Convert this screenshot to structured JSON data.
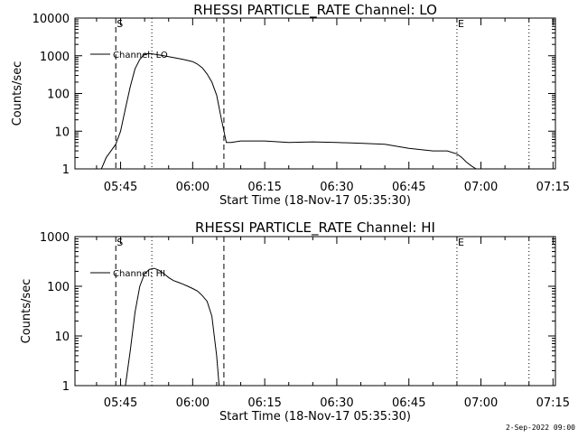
{
  "footer": {
    "date_label": "2-Sep-2022 09:00"
  },
  "chart_data": [
    {
      "type": "line",
      "title": "RHESSI PARTICLE_RATE Channel: LO",
      "xlabel": "Start Time (18-Nov-17 05:35:30)",
      "ylabel": "Counts/sec",
      "y_scale": "log",
      "ylim": [
        1,
        10000
      ],
      "xlim": [
        "05:35:30",
        "07:15:30"
      ],
      "x_ticks": [
        "05:45",
        "06:00",
        "06:15",
        "06:30",
        "06:45",
        "07:00",
        "07:15"
      ],
      "y_ticks": [
        "1",
        "10",
        "100",
        "1000",
        "10000"
      ],
      "legend": {
        "label": "Channel: LO",
        "position": "top-left"
      },
      "markers": [
        {
          "label": "S",
          "time": "05:44:00",
          "style": "dashed"
        },
        {
          "label": "",
          "time": "05:51:30",
          "style": "dotted"
        },
        {
          "label": "",
          "time": "06:06:30",
          "style": "dashed"
        },
        {
          "label": "E",
          "time": "06:55:00",
          "style": "dotted"
        },
        {
          "label": "",
          "time": "07:10:00",
          "style": "dotted"
        }
      ],
      "series": [
        {
          "name": "Channel: LO",
          "x": [
            "05:41:00",
            "05:42:00",
            "05:43:00",
            "05:44:00",
            "05:45:00",
            "05:46:00",
            "05:47:00",
            "05:48:00",
            "05:49:00",
            "05:50:00",
            "05:51:00",
            "05:52:00",
            "05:53:00",
            "05:54:00",
            "05:55:00",
            "05:56:00",
            "05:57:00",
            "05:58:00",
            "05:59:00",
            "06:00:00",
            "06:01:00",
            "06:02:00",
            "06:03:00",
            "06:04:00",
            "06:05:00",
            "06:06:00",
            "06:07:00",
            "06:08:00",
            "06:10:00",
            "06:15:00",
            "06:20:00",
            "06:25:00",
            "06:30:00",
            "06:35:00",
            "06:40:00",
            "06:45:00",
            "06:50:00",
            "06:53:00",
            "06:55:00",
            "06:56:00",
            "06:57:00",
            "06:58:00",
            "06:59:00"
          ],
          "y": [
            1,
            2,
            3,
            4.5,
            10,
            40,
            150,
            450,
            800,
            1100,
            1150,
            1100,
            1050,
            1000,
            950,
            900,
            850,
            800,
            750,
            700,
            600,
            480,
            330,
            200,
            90,
            20,
            5,
            5,
            5.5,
            5.5,
            5,
            5.2,
            5,
            4.8,
            4.5,
            3.5,
            3,
            3,
            2.5,
            2,
            1.5,
            1.2,
            1
          ]
        }
      ]
    },
    {
      "type": "line",
      "title": "RHESSI PARTICLE_RATE Channel: HI",
      "xlabel": "Start Time (18-Nov-17 05:35:30)",
      "ylabel": "Counts/sec",
      "y_scale": "log",
      "ylim": [
        1,
        1000
      ],
      "xlim": [
        "05:35:30",
        "07:15:30"
      ],
      "x_ticks": [
        "05:45",
        "06:00",
        "06:15",
        "06:30",
        "06:45",
        "07:00",
        "07:15"
      ],
      "y_ticks": [
        "1",
        "10",
        "100",
        "1000"
      ],
      "legend": {
        "label": "Channel: HI",
        "position": "top-left"
      },
      "markers": [
        {
          "label": "S",
          "time": "05:44:00",
          "style": "dashed"
        },
        {
          "label": "",
          "time": "05:51:30",
          "style": "dotted"
        },
        {
          "label": "",
          "time": "06:06:30",
          "style": "dashed"
        },
        {
          "label": "E",
          "time": "06:55:00",
          "style": "dotted"
        },
        {
          "label": "",
          "time": "07:10:00",
          "style": "dotted"
        }
      ],
      "series": [
        {
          "name": "Channel: HI",
          "x": [
            "05:46:00",
            "05:47:00",
            "05:48:00",
            "05:49:00",
            "05:50:00",
            "05:51:00",
            "05:52:00",
            "05:53:00",
            "05:54:00",
            "05:55:00",
            "05:56:00",
            "05:57:00",
            "05:58:00",
            "05:59:00",
            "06:00:00",
            "06:01:00",
            "06:02:00",
            "06:03:00",
            "06:04:00",
            "06:05:00",
            "06:05:30"
          ],
          "y": [
            1,
            5,
            30,
            100,
            180,
            220,
            230,
            210,
            180,
            150,
            130,
            120,
            110,
            100,
            90,
            80,
            65,
            50,
            25,
            4,
            1
          ]
        }
      ]
    }
  ]
}
